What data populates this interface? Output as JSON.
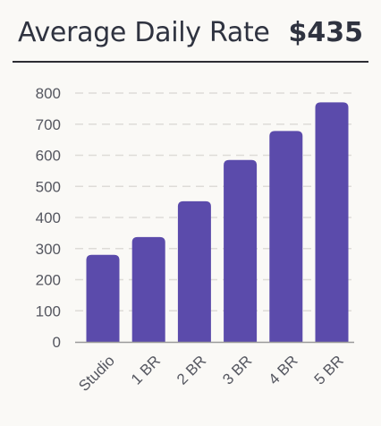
{
  "header": {
    "title": "Average Daily Rate",
    "value": "$435"
  },
  "colors": {
    "bar": "#5b4bab",
    "grid": "#dedcd8",
    "axis": "#9a9a9a"
  },
  "chart_data": {
    "type": "bar",
    "categories": [
      "Studio",
      "1 BR",
      "2 BR",
      "3 BR",
      "4 BR",
      "5 BR"
    ],
    "values": [
      280,
      337,
      452,
      585,
      678,
      770
    ],
    "ylim": [
      0,
      800
    ],
    "yticks": [
      0,
      100,
      200,
      300,
      400,
      500,
      600,
      700,
      800
    ],
    "grid": true
  }
}
